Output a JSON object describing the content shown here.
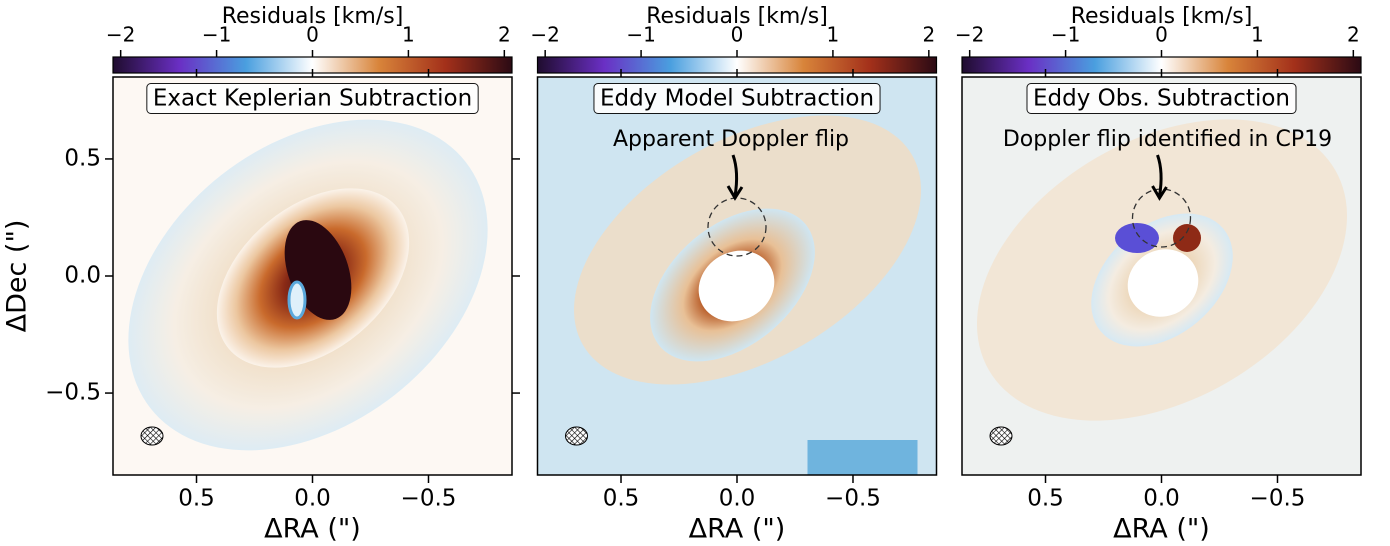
{
  "chart_data": [
    {
      "type": "image",
      "annotation": "Exact Keplerian Subtraction",
      "colorbar_label": "Residuals [km/s]",
      "clim": [
        -2.08,
        2.08
      ],
      "cticks": [
        {
          "value": -2,
          "label": "−2"
        },
        {
          "value": -1,
          "label": "−1"
        },
        0,
        1,
        2
      ],
      "colormap": [
        "#1f0c2e",
        "#6a2fc4",
        "#4a9fdf",
        "#ffffff",
        "#d8843a",
        "#a3301a",
        "#2b0a14"
      ],
      "xlabel": "ΔRA (\")",
      "ylabel": "ΔDec (\")",
      "xlim": [
        0.86,
        -0.86
      ],
      "ylim": [
        -0.85,
        0.85
      ],
      "xticks": [
        0.5,
        {
          "value": 0,
          "label": "0.0"
        },
        {
          "value": -0.5,
          "label": "−0.5"
        }
      ],
      "yticks": [
        {
          "value": -0.5,
          "label": "−0.5"
        },
        {
          "value": 0,
          "label": "0.0"
        },
        0.5
      ]
    },
    {
      "type": "image",
      "annotation": "Eddy Model Subtraction",
      "note": "Apparent Doppler flip",
      "colorbar_label": "Residuals [km/s]",
      "clim": [
        -2.08,
        2.08
      ],
      "cticks": [
        {
          "value": -2,
          "label": "−2"
        },
        {
          "value": -1,
          "label": "−1"
        },
        0,
        1,
        2
      ],
      "colormap": [
        "#1f0c2e",
        "#6a2fc4",
        "#4a9fdf",
        "#ffffff",
        "#d8843a",
        "#a3301a",
        "#2b0a14"
      ],
      "xlabel": "ΔRA (\")",
      "xlim": [
        0.86,
        -0.86
      ],
      "ylim": [
        -0.85,
        0.85
      ],
      "xticks": [
        0.5,
        {
          "value": 0,
          "label": "0.0"
        },
        {
          "value": -0.5,
          "label": "−0.5"
        }
      ]
    },
    {
      "type": "image",
      "annotation": "Eddy Obs. Subtraction",
      "note": "Doppler flip identified in CP19",
      "colorbar_label": "Residuals [km/s]",
      "clim": [
        -2.08,
        2.08
      ],
      "cticks": [
        {
          "value": -2,
          "label": "−2"
        },
        {
          "value": -1,
          "label": "−1"
        },
        0,
        1,
        2
      ],
      "colormap": [
        "#1f0c2e",
        "#6a2fc4",
        "#4a9fdf",
        "#ffffff",
        "#d8843a",
        "#a3301a",
        "#2b0a14"
      ],
      "xlabel": "ΔRA (\")",
      "xlim": [
        0.86,
        -0.86
      ],
      "ylim": [
        -0.85,
        0.85
      ],
      "xticks": [
        0.5,
        {
          "value": 0,
          "label": "0.0"
        },
        {
          "value": -0.5,
          "label": "−0.5"
        }
      ]
    }
  ]
}
